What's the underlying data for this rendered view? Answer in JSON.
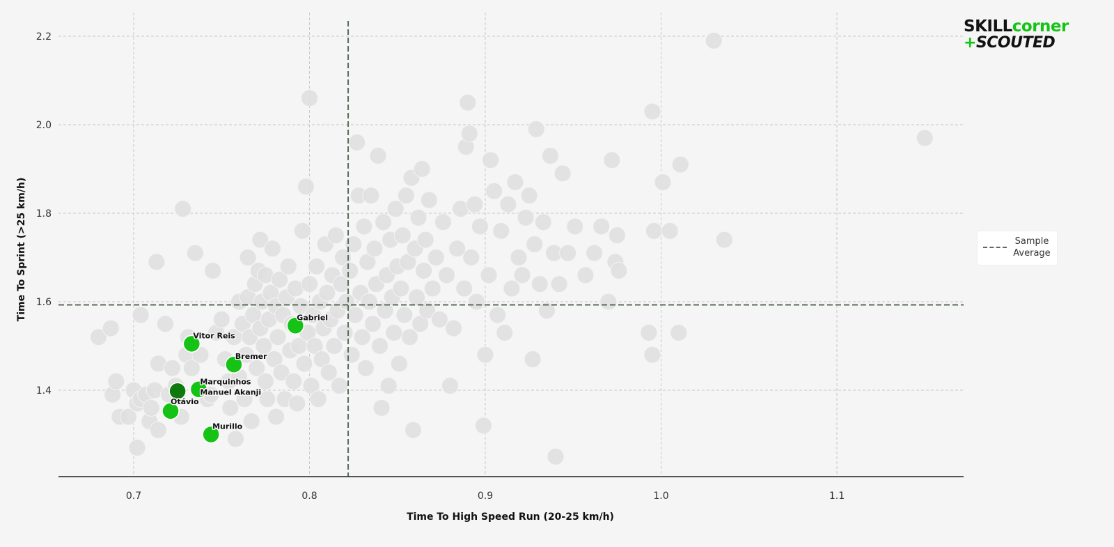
{
  "brand": {
    "part1": "SKILL",
    "part2": "corner",
    "plus": "+",
    "part3": "SCOUTED",
    "color_dark": "#111111",
    "color_green": "#14c314"
  },
  "legend": {
    "line1": "Sample",
    "line2": "Average"
  },
  "chart_data": {
    "type": "scatter",
    "title": "",
    "xlabel": "Time To High Speed Run (20-25 km/h)",
    "ylabel": "Time To Sprint (>25 km/h)",
    "xlim": [
      0.655,
      1.175
    ],
    "ylim": [
      1.2,
      2.25
    ],
    "xticks": [
      0.7,
      0.8,
      0.9,
      1.0,
      1.1
    ],
    "yticks": [
      1.4,
      1.6,
      1.8,
      2.0,
      2.2
    ],
    "xtick_labels": [
      "0.7",
      "0.8",
      "0.9",
      "1.0",
      "1.1"
    ],
    "ytick_labels": [
      "1.4",
      "1.6",
      "1.8",
      "2.0",
      "2.2"
    ],
    "grid": true,
    "legend_position": "right",
    "average_line_color": "#5a6b5a",
    "sample_average": {
      "x": 0.822,
      "y": 1.593
    },
    "colors": {
      "background_points": "#e0e0e0",
      "highlight": "#14c314",
      "selected": "#0e7a0e"
    },
    "highlighted": [
      {
        "name": "Gabriel",
        "x": 0.792,
        "y": 1.546,
        "selected": false
      },
      {
        "name": "Vitor Reis",
        "x": 0.733,
        "y": 1.505,
        "selected": false
      },
      {
        "name": "Bremer",
        "x": 0.757,
        "y": 1.458,
        "selected": false
      },
      {
        "name": "Marquinhos",
        "x": 0.725,
        "y": 1.398,
        "selected": true
      },
      {
        "name": "Manuel Akanji",
        "x": 0.737,
        "y": 1.402,
        "selected": false
      },
      {
        "name": "Otávio",
        "x": 0.721,
        "y": 1.353,
        "selected": false
      },
      {
        "name": "Murillo",
        "x": 0.744,
        "y": 1.3,
        "selected": false
      }
    ],
    "sample": [
      [
        0.68,
        1.52
      ],
      [
        0.687,
        1.54
      ],
      [
        0.688,
        1.39
      ],
      [
        0.69,
        1.42
      ],
      [
        0.692,
        1.34
      ],
      [
        0.697,
        1.34
      ],
      [
        0.7,
        1.4
      ],
      [
        0.702,
        1.37
      ],
      [
        0.704,
        1.38
      ],
      [
        0.702,
        1.27
      ],
      [
        0.704,
        1.57
      ],
      [
        0.707,
        1.39
      ],
      [
        0.709,
        1.33
      ],
      [
        0.71,
        1.36
      ],
      [
        0.712,
        1.4
      ],
      [
        0.714,
        1.31
      ],
      [
        0.713,
        1.69
      ],
      [
        0.714,
        1.46
      ],
      [
        0.718,
        1.55
      ],
      [
        0.72,
        1.39
      ],
      [
        0.722,
        1.45
      ],
      [
        0.724,
        1.41
      ],
      [
        0.727,
        1.34
      ],
      [
        0.728,
        1.81
      ],
      [
        0.73,
        1.48
      ],
      [
        0.731,
        1.52
      ],
      [
        0.733,
        1.45
      ],
      [
        0.735,
        1.71
      ],
      [
        0.738,
        1.48
      ],
      [
        0.742,
        1.38
      ],
      [
        0.744,
        1.39
      ],
      [
        0.745,
        1.67
      ],
      [
        0.747,
        1.53
      ],
      [
        0.75,
        1.56
      ],
      [
        0.752,
        1.47
      ],
      [
        0.754,
        1.42
      ],
      [
        0.755,
        1.36
      ],
      [
        0.757,
        1.52
      ],
      [
        0.758,
        1.29
      ],
      [
        0.76,
        1.6
      ],
      [
        0.76,
        1.43
      ],
      [
        0.762,
        1.55
      ],
      [
        0.763,
        1.38
      ],
      [
        0.764,
        1.48
      ],
      [
        0.765,
        1.61
      ],
      [
        0.765,
        1.7
      ],
      [
        0.766,
        1.52
      ],
      [
        0.767,
        1.33
      ],
      [
        0.768,
        1.57
      ],
      [
        0.769,
        1.64
      ],
      [
        0.77,
        1.45
      ],
      [
        0.771,
        1.67
      ],
      [
        0.772,
        1.54
      ],
      [
        0.772,
        1.74
      ],
      [
        0.773,
        1.6
      ],
      [
        0.774,
        1.5
      ],
      [
        0.775,
        1.42
      ],
      [
        0.775,
        1.66
      ],
      [
        0.776,
        1.38
      ],
      [
        0.777,
        1.56
      ],
      [
        0.778,
        1.62
      ],
      [
        0.779,
        1.72
      ],
      [
        0.78,
        1.47
      ],
      [
        0.781,
        1.59
      ],
      [
        0.781,
        1.34
      ],
      [
        0.782,
        1.52
      ],
      [
        0.783,
        1.65
      ],
      [
        0.784,
        1.44
      ],
      [
        0.785,
        1.57
      ],
      [
        0.786,
        1.38
      ],
      [
        0.787,
        1.61
      ],
      [
        0.788,
        1.68
      ],
      [
        0.789,
        1.49
      ],
      [
        0.79,
        1.55
      ],
      [
        0.791,
        1.42
      ],
      [
        0.792,
        1.63
      ],
      [
        0.793,
        1.37
      ],
      [
        0.794,
        1.5
      ],
      [
        0.795,
        1.59
      ],
      [
        0.796,
        1.76
      ],
      [
        0.797,
        1.46
      ],
      [
        0.798,
        1.86
      ],
      [
        0.799,
        1.53
      ],
      [
        0.8,
        1.64
      ],
      [
        0.8,
        2.06
      ],
      [
        0.801,
        1.41
      ],
      [
        0.802,
        1.57
      ],
      [
        0.803,
        1.5
      ],
      [
        0.804,
        1.68
      ],
      [
        0.805,
        1.38
      ],
      [
        0.806,
        1.6
      ],
      [
        0.807,
        1.47
      ],
      [
        0.808,
        1.54
      ],
      [
        0.809,
        1.73
      ],
      [
        0.81,
        1.62
      ],
      [
        0.811,
        1.44
      ],
      [
        0.812,
        1.56
      ],
      [
        0.813,
        1.66
      ],
      [
        0.814,
        1.5
      ],
      [
        0.815,
        1.75
      ],
      [
        0.816,
        1.58
      ],
      [
        0.817,
        1.41
      ],
      [
        0.818,
        1.64
      ],
      [
        0.819,
        1.7
      ],
      [
        0.82,
        1.53
      ],
      [
        0.821,
        1.6
      ],
      [
        0.823,
        1.67
      ],
      [
        0.824,
        1.48
      ],
      [
        0.825,
        1.73
      ],
      [
        0.826,
        1.57
      ],
      [
        0.827,
        1.96
      ],
      [
        0.828,
        1.84
      ],
      [
        0.829,
        1.62
      ],
      [
        0.83,
        1.52
      ],
      [
        0.831,
        1.77
      ],
      [
        0.832,
        1.45
      ],
      [
        0.833,
        1.69
      ],
      [
        0.834,
        1.6
      ],
      [
        0.835,
        1.84
      ],
      [
        0.836,
        1.55
      ],
      [
        0.837,
        1.72
      ],
      [
        0.838,
        1.64
      ],
      [
        0.839,
        1.93
      ],
      [
        0.84,
        1.5
      ],
      [
        0.841,
        1.36
      ],
      [
        0.842,
        1.78
      ],
      [
        0.843,
        1.58
      ],
      [
        0.844,
        1.66
      ],
      [
        0.845,
        1.41
      ],
      [
        0.846,
        1.74
      ],
      [
        0.847,
        1.61
      ],
      [
        0.848,
        1.53
      ],
      [
        0.849,
        1.81
      ],
      [
        0.85,
        1.68
      ],
      [
        0.851,
        1.46
      ],
      [
        0.852,
        1.63
      ],
      [
        0.853,
        1.75
      ],
      [
        0.854,
        1.57
      ],
      [
        0.855,
        1.84
      ],
      [
        0.856,
        1.69
      ],
      [
        0.857,
        1.52
      ],
      [
        0.858,
        1.88
      ],
      [
        0.859,
        1.31
      ],
      [
        0.86,
        1.72
      ],
      [
        0.861,
        1.61
      ],
      [
        0.862,
        1.79
      ],
      [
        0.863,
        1.55
      ],
      [
        0.864,
        1.9
      ],
      [
        0.865,
        1.67
      ],
      [
        0.866,
        1.74
      ],
      [
        0.867,
        1.58
      ],
      [
        0.868,
        1.83
      ],
      [
        0.87,
        1.63
      ],
      [
        0.872,
        1.7
      ],
      [
        0.874,
        1.56
      ],
      [
        0.876,
        1.78
      ],
      [
        0.878,
        1.66
      ],
      [
        0.88,
        1.41
      ],
      [
        0.882,
        1.54
      ],
      [
        0.884,
        1.72
      ],
      [
        0.886,
        1.81
      ],
      [
        0.888,
        1.63
      ],
      [
        0.889,
        1.95
      ],
      [
        0.89,
        2.05
      ],
      [
        0.891,
        1.98
      ],
      [
        0.892,
        1.7
      ],
      [
        0.894,
        1.82
      ],
      [
        0.895,
        1.6
      ],
      [
        0.897,
        1.77
      ],
      [
        0.899,
        1.32
      ],
      [
        0.9,
        1.48
      ],
      [
        0.902,
        1.66
      ],
      [
        0.903,
        1.92
      ],
      [
        0.905,
        1.85
      ],
      [
        0.907,
        1.57
      ],
      [
        0.909,
        1.76
      ],
      [
        0.911,
        1.53
      ],
      [
        0.913,
        1.82
      ],
      [
        0.915,
        1.63
      ],
      [
        0.917,
        1.87
      ],
      [
        0.919,
        1.7
      ],
      [
        0.921,
        1.66
      ],
      [
        0.923,
        1.79
      ],
      [
        0.925,
        1.84
      ],
      [
        0.927,
        1.47
      ],
      [
        0.928,
        1.73
      ],
      [
        0.929,
        1.99
      ],
      [
        0.931,
        1.64
      ],
      [
        0.933,
        1.78
      ],
      [
        0.935,
        1.58
      ],
      [
        0.937,
        1.93
      ],
      [
        0.939,
        1.71
      ],
      [
        0.94,
        1.25
      ],
      [
        0.942,
        1.64
      ],
      [
        0.944,
        1.89
      ],
      [
        0.947,
        1.71
      ],
      [
        0.951,
        1.77
      ],
      [
        0.957,
        1.66
      ],
      [
        0.962,
        1.71
      ],
      [
        0.966,
        1.77
      ],
      [
        0.97,
        1.6
      ],
      [
        0.972,
        1.92
      ],
      [
        0.974,
        1.69
      ],
      [
        0.975,
        1.75
      ],
      [
        0.976,
        1.67
      ],
      [
        0.993,
        1.53
      ],
      [
        0.995,
        1.48
      ],
      [
        0.996,
        1.76
      ],
      [
        0.995,
        2.03
      ],
      [
        1.001,
        1.87
      ],
      [
        1.005,
        1.76
      ],
      [
        1.01,
        1.53
      ],
      [
        1.011,
        1.91
      ],
      [
        1.03,
        2.19
      ],
      [
        1.036,
        1.74
      ],
      [
        1.15,
        1.97
      ]
    ]
  }
}
